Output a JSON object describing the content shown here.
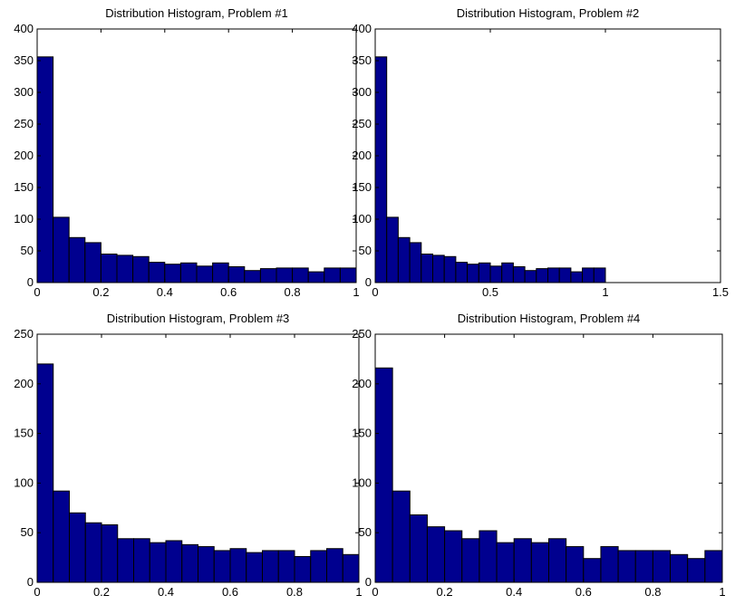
{
  "figure": {
    "bar_color": "#00008f",
    "edge_color": "#000000"
  },
  "chart_data": [
    {
      "type": "bar",
      "title": "Distribution Histogram, Problem #1",
      "xlabel": "",
      "ylabel": "",
      "xlim": [
        0,
        1
      ],
      "ylim": [
        0,
        400
      ],
      "xticks": [
        0,
        0.2,
        0.4,
        0.6,
        0.8,
        1
      ],
      "xtick_labels": [
        "0",
        "0.2",
        "0.4",
        "0.6",
        "0.8",
        "1"
      ],
      "yticks": [
        0,
        50,
        100,
        150,
        200,
        250,
        300,
        350,
        400
      ],
      "ytick_labels": [
        "0",
        "50",
        "100",
        "150",
        "200",
        "250",
        "300",
        "350",
        "400"
      ],
      "bin_edges": [
        0,
        0.05,
        0.1,
        0.15,
        0.2,
        0.25,
        0.3,
        0.35,
        0.4,
        0.45,
        0.5,
        0.55,
        0.6,
        0.65,
        0.7,
        0.75,
        0.8,
        0.85,
        0.9,
        0.95,
        1.0
      ],
      "values": [
        356,
        103,
        71,
        63,
        45,
        43,
        41,
        32,
        29,
        31,
        26,
        31,
        25,
        19,
        22,
        23,
        23,
        17,
        23,
        23
      ]
    },
    {
      "type": "bar",
      "title": "Distribution Histogram, Problem #2",
      "xlabel": "",
      "ylabel": "",
      "xlim": [
        0,
        1.5
      ],
      "ylim": [
        0,
        400
      ],
      "xticks": [
        0,
        0.5,
        1,
        1.5
      ],
      "xtick_labels": [
        "0",
        "0.5",
        "1",
        "1.5"
      ],
      "yticks": [
        0,
        50,
        100,
        150,
        200,
        250,
        300,
        350,
        400
      ],
      "ytick_labels": [
        "0",
        "50",
        "100",
        "150",
        "200",
        "250",
        "300",
        "350",
        "400"
      ],
      "bin_edges": [
        0,
        0.05,
        0.1,
        0.15,
        0.2,
        0.25,
        0.3,
        0.35,
        0.4,
        0.45,
        0.5,
        0.55,
        0.6,
        0.65,
        0.7,
        0.75,
        0.8,
        0.85,
        0.9,
        0.95,
        1.0
      ],
      "values": [
        356,
        103,
        71,
        63,
        45,
        43,
        41,
        32,
        29,
        31,
        26,
        31,
        25,
        19,
        22,
        23,
        23,
        17,
        23,
        23
      ]
    },
    {
      "type": "bar",
      "title": "Distribution Histogram, Problem #3",
      "xlabel": "",
      "ylabel": "",
      "xlim": [
        0,
        1
      ],
      "ylim": [
        0,
        250
      ],
      "xticks": [
        0,
        0.2,
        0.4,
        0.6,
        0.8,
        1
      ],
      "xtick_labels": [
        "0",
        "0.2",
        "0.4",
        "0.6",
        "0.8",
        "1"
      ],
      "yticks": [
        0,
        50,
        100,
        150,
        200,
        250
      ],
      "ytick_labels": [
        "0",
        "50",
        "100",
        "150",
        "200",
        "250"
      ],
      "bin_edges": [
        0,
        0.05,
        0.1,
        0.15,
        0.2,
        0.25,
        0.3,
        0.35,
        0.4,
        0.45,
        0.5,
        0.55,
        0.6,
        0.65,
        0.7,
        0.75,
        0.8,
        0.85,
        0.9,
        0.95,
        1.0
      ],
      "values": [
        220,
        92,
        70,
        60,
        58,
        44,
        44,
        40,
        42,
        38,
        36,
        32,
        34,
        30,
        32,
        32,
        26,
        32,
        34,
        28
      ]
    },
    {
      "type": "bar",
      "title": "Distribution Histogram, Problem #4",
      "xlabel": "",
      "ylabel": "",
      "xlim": [
        0,
        1
      ],
      "ylim": [
        0,
        250
      ],
      "xticks": [
        0,
        0.2,
        0.4,
        0.6,
        0.8,
        1
      ],
      "xtick_labels": [
        "0",
        "0.2",
        "0.4",
        "0.6",
        "0.8",
        "1"
      ],
      "yticks": [
        0,
        50,
        100,
        150,
        200,
        250
      ],
      "ytick_labels": [
        "0",
        "50",
        "100",
        "150",
        "200",
        "250"
      ],
      "bin_edges": [
        0,
        0.05,
        0.1,
        0.15,
        0.2,
        0.25,
        0.3,
        0.35,
        0.4,
        0.45,
        0.5,
        0.55,
        0.6,
        0.65,
        0.7,
        0.75,
        0.8,
        0.85,
        0.9,
        0.95,
        1.0
      ],
      "values": [
        216,
        92,
        68,
        56,
        52,
        44,
        52,
        40,
        44,
        40,
        44,
        36,
        24,
        36,
        32,
        32,
        32,
        28,
        24,
        32
      ]
    }
  ]
}
